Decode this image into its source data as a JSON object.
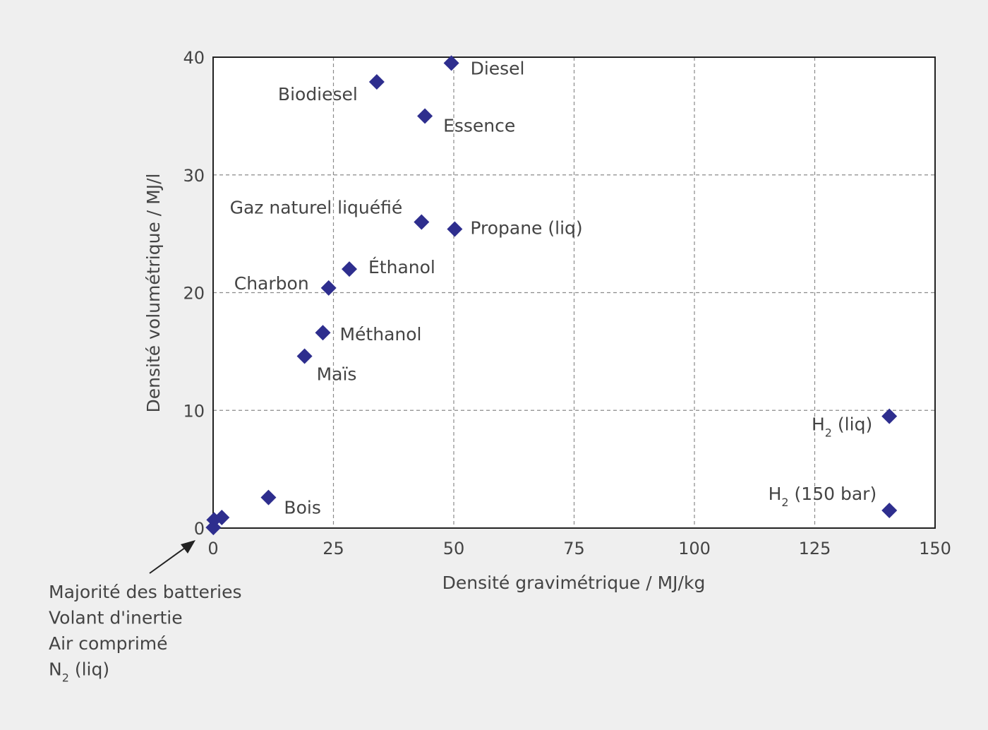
{
  "chart_data": {
    "type": "scatter",
    "title": "",
    "xlabel": "Densité gravimétrique / MJ/kg",
    "ylabel": "Densité volumétrique / MJ/l",
    "xlim": [
      0,
      150
    ],
    "ylim": [
      0,
      40
    ],
    "xticks": [
      "0",
      "25",
      "50",
      "75",
      "100",
      "125",
      "150"
    ],
    "yticks": [
      "0",
      "10",
      "20",
      "30",
      "40"
    ],
    "grid": true,
    "marker_color": "#2e2e8e",
    "points": [
      {
        "label": "Diesel",
        "x": 49.5,
        "y": 39.5
      },
      {
        "label": "Biodiesel",
        "x": 34,
        "y": 37.9
      },
      {
        "label": "Essence",
        "x": 44,
        "y": 35
      },
      {
        "label": "Gaz naturel liquéfié",
        "x": 43.3,
        "y": 26
      },
      {
        "label": "Propane (liq)",
        "x": 50.2,
        "y": 25.4
      },
      {
        "label": "Éthanol",
        "x": 28.3,
        "y": 22
      },
      {
        "label": "Charbon",
        "x": 24,
        "y": 20.4
      },
      {
        "label": "Méthanol",
        "x": 22.8,
        "y": 16.6
      },
      {
        "label": "Maïs",
        "x": 19,
        "y": 14.6
      },
      {
        "label": "H",
        "sub": "2",
        "suffix": " (liq)",
        "x": 140.5,
        "y": 9.5
      },
      {
        "label": "H",
        "sub": "2",
        "suffix": " (150 bar)",
        "x": 140.5,
        "y": 1.5
      },
      {
        "label": "Bois",
        "x": 11.5,
        "y": 2.6
      },
      {
        "label": "",
        "x": 1.8,
        "y": 0.9
      },
      {
        "label": "",
        "x": 0.2,
        "y": 0.7
      },
      {
        "label": "",
        "x": 0.05,
        "y": 0.05
      }
    ]
  },
  "annotation": {
    "lines": [
      {
        "text": "Majorité des batteries"
      },
      {
        "text": "Volant d'inertie"
      },
      {
        "text": "Air comprimé"
      },
      {
        "text": "N",
        "sub": "2",
        "suffix": " (liq)"
      }
    ]
  }
}
